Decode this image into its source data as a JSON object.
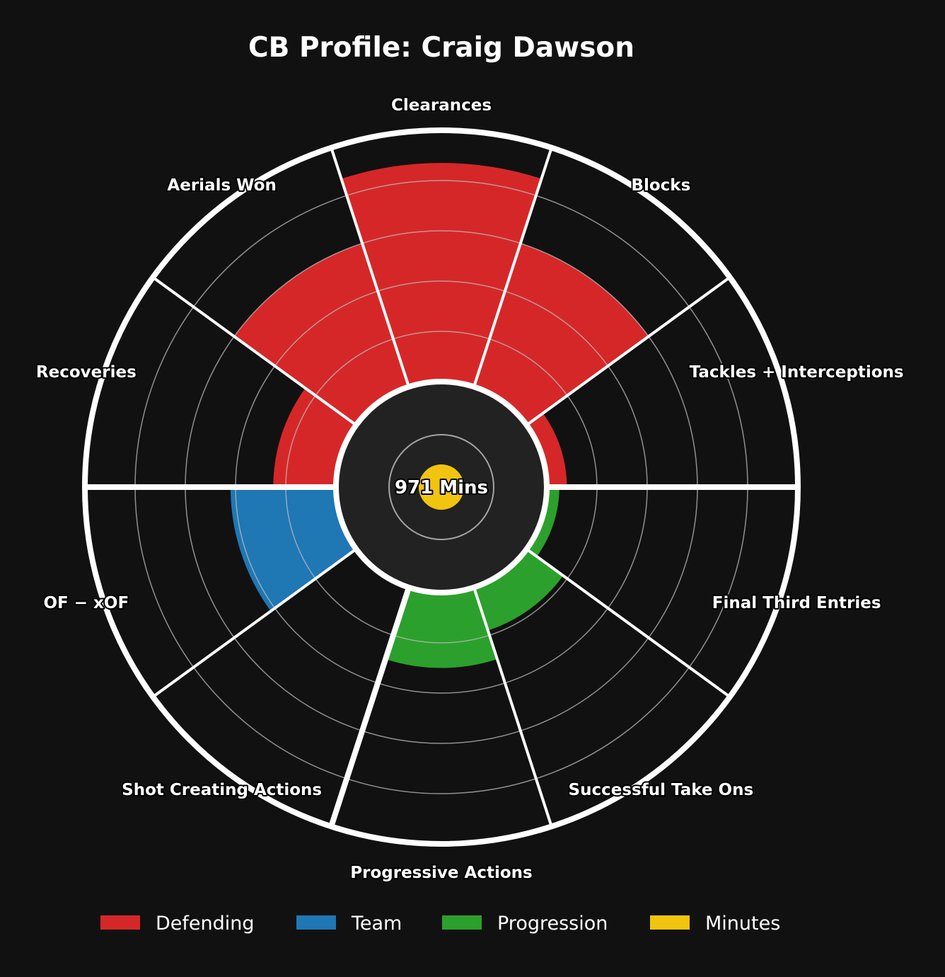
{
  "chart_data": {
    "type": "polar_bar",
    "title": "CB Profile: Craig Dawson",
    "rlim": [
      0,
      100
    ],
    "grid": true,
    "legend_position": "bottom",
    "categories": [
      {
        "name": "Clearances",
        "group": "Defending",
        "value": 87
      },
      {
        "name": "Blocks",
        "group": "Defending",
        "value": 60
      },
      {
        "name": "Tackles + Interceptions",
        "group": "Defending",
        "value": 8
      },
      {
        "name": "Final Third Entries",
        "group": "Progression",
        "value": 5
      },
      {
        "name": "Successful Take Ons",
        "group": "Progression",
        "value": 18
      },
      {
        "name": "Progressive Actions",
        "group": "Progression",
        "value": 30
      },
      {
        "name": "Shot Creating Actions",
        "group": "Team",
        "value": 0
      },
      {
        "name": "OF − xOF",
        "group": "Team",
        "value": 42
      },
      {
        "name": "Recoveries",
        "group": "Defending",
        "value": 25
      },
      {
        "name": "Aerials Won",
        "group": "Defending",
        "value": 60
      }
    ],
    "legend": [
      {
        "name": "Defending",
        "color": "#d62728"
      },
      {
        "name": "Team",
        "color": "#1f77b4"
      },
      {
        "name": "Progression",
        "color": "#2ca02c"
      },
      {
        "name": "Minutes",
        "color": "#f1c40f"
      }
    ],
    "center": {
      "label": "971 Mins",
      "minutes": 971,
      "color": "#f1c40f"
    }
  }
}
